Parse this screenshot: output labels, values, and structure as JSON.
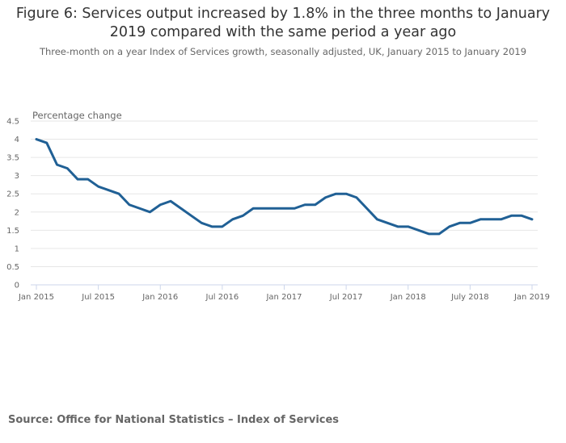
{
  "chart_data": {
    "type": "line",
    "title": "Figure 6: Services output increased by 1.8% in the three months to January 2019 compared with the same period a year ago",
    "subtitle": "Three-month on a year Index of Services growth, seasonally adjusted, UK, January 2015 to January 2019",
    "xlabel": "",
    "ylabel": "Percentage change",
    "ylim": [
      0,
      4.5
    ],
    "yticks": [
      "0",
      "0.5",
      "1",
      "1.5",
      "2",
      "2.5",
      "3",
      "3.5",
      "4",
      "4.5"
    ],
    "ytick_values": [
      0,
      0.5,
      1,
      1.5,
      2,
      2.5,
      3,
      3.5,
      4,
      4.5
    ],
    "xticks": [
      {
        "label": "Jan 2015",
        "index": 0
      },
      {
        "label": "Jul 2015",
        "index": 6
      },
      {
        "label": "Jan 2016",
        "index": 12
      },
      {
        "label": "Jul 2016",
        "index": 18
      },
      {
        "label": "Jan 2017",
        "index": 24
      },
      {
        "label": "Jul 2017",
        "index": 30
      },
      {
        "label": "Jan 2018",
        "index": 36
      },
      {
        "label": "July 2018",
        "index": 42
      },
      {
        "label": "Jan 2019",
        "index": 48
      }
    ],
    "grid": true,
    "legend": "none",
    "color": "#206095",
    "series": [
      {
        "name": "Index of Services growth",
        "x": [
          "Jan 2015",
          "Feb 2015",
          "Mar 2015",
          "Apr 2015",
          "May 2015",
          "Jun 2015",
          "Jul 2015",
          "Aug 2015",
          "Sep 2015",
          "Oct 2015",
          "Nov 2015",
          "Dec 2015",
          "Jan 2016",
          "Feb 2016",
          "Mar 2016",
          "Apr 2016",
          "May 2016",
          "Jun 2016",
          "Jul 2016",
          "Aug 2016",
          "Sep 2016",
          "Oct 2016",
          "Nov 2016",
          "Dec 2016",
          "Jan 2017",
          "Feb 2017",
          "Mar 2017",
          "Apr 2017",
          "May 2017",
          "Jun 2017",
          "Jul 2017",
          "Aug 2017",
          "Sep 2017",
          "Oct 2017",
          "Nov 2017",
          "Dec 2017",
          "Jan 2018",
          "Feb 2018",
          "Mar 2018",
          "Apr 2018",
          "May 2018",
          "Jun 2018",
          "Jul 2018",
          "Aug 2018",
          "Sep 2018",
          "Oct 2018",
          "Nov 2018",
          "Dec 2018",
          "Jan 2019"
        ],
        "values": [
          4.0,
          3.9,
          3.3,
          3.2,
          2.9,
          2.9,
          2.7,
          2.6,
          2.5,
          2.2,
          2.1,
          2.0,
          2.2,
          2.3,
          2.1,
          1.9,
          1.7,
          1.6,
          1.6,
          1.8,
          1.9,
          2.1,
          2.1,
          2.1,
          2.1,
          2.1,
          2.2,
          2.2,
          2.4,
          2.5,
          2.5,
          2.4,
          2.1,
          1.8,
          1.7,
          1.6,
          1.6,
          1.5,
          1.4,
          1.4,
          1.6,
          1.7,
          1.7,
          1.8,
          1.8,
          1.8,
          1.9,
          1.9,
          1.8
        ]
      }
    ]
  },
  "footer": {
    "source": "Source: Office for National Statistics – Index of Services"
  }
}
